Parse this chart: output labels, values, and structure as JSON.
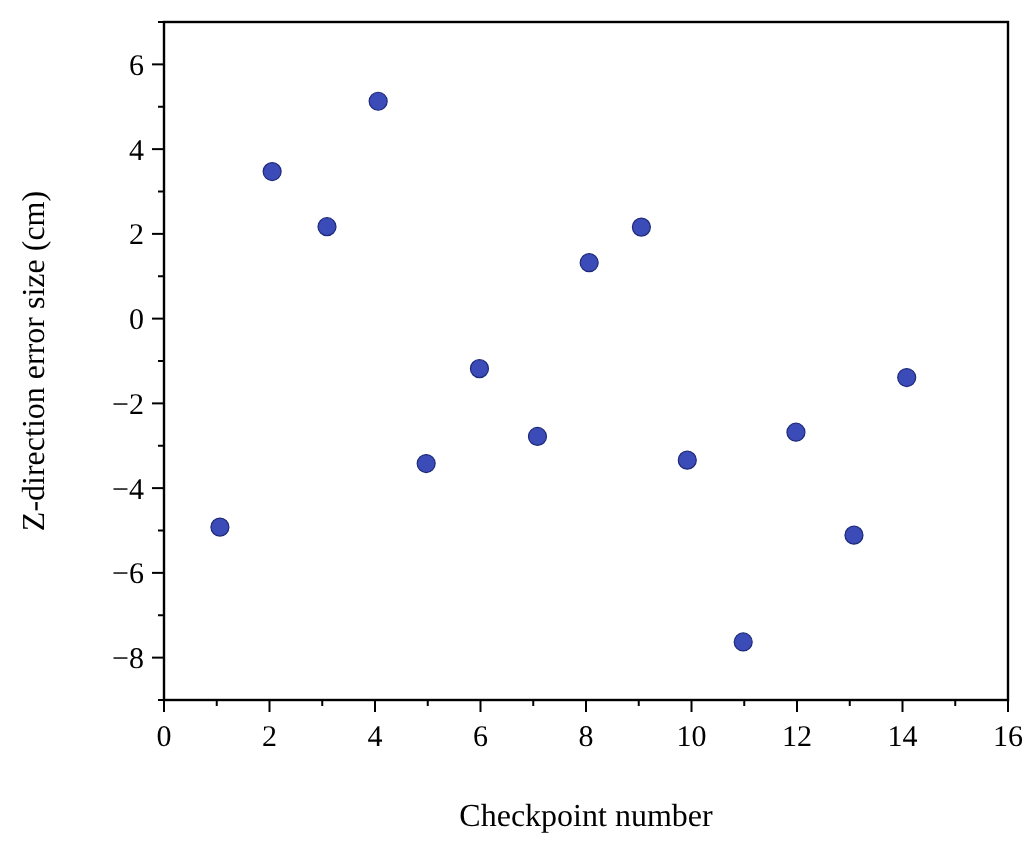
{
  "chart_data": {
    "type": "scatter",
    "xlabel": "Checkpoint number",
    "ylabel": "Z-direction error size (cm)",
    "x": [
      1.06,
      2.05,
      3.09,
      4.06,
      4.97,
      5.98,
      7.08,
      8.06,
      9.05,
      9.92,
      10.98,
      11.98,
      13.08,
      14.08
    ],
    "series": [
      {
        "color": "#3b4cb8",
        "values": [
          -4.92,
          3.47,
          2.17,
          5.13,
          -3.42,
          -1.18,
          -2.78,
          1.32,
          2.16,
          -3.34,
          -7.63,
          -2.68,
          -5.11,
          -1.39
        ]
      }
    ],
    "xlim": [
      0,
      16
    ],
    "xticks": [
      0,
      2,
      4,
      6,
      8,
      10,
      12,
      14,
      16
    ],
    "ylim": [
      -9,
      7
    ],
    "yticks": [
      -8,
      -6,
      -4,
      -2,
      0,
      2,
      4,
      6
    ],
    "marker": "circle",
    "grid": false
  }
}
